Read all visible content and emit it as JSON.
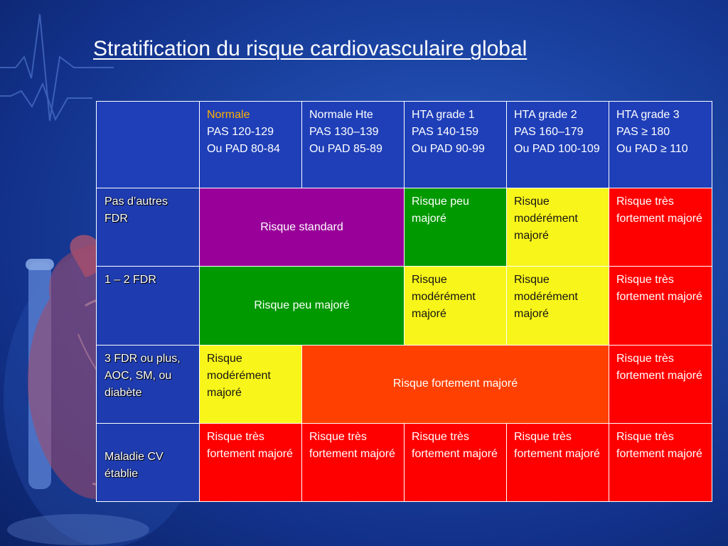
{
  "slide": {
    "title": "Stratification du risque cardiovasculaire global"
  },
  "table": {
    "columns": [
      {
        "line1": "Normale",
        "line2": "PAS 120-129",
        "line3": "Ou PAD 80-84"
      },
      {
        "line1": "Normale Hte",
        "line2": "PAS 130–139",
        "line3": "Ou PAD 85-89"
      },
      {
        "line1": "HTA grade 1",
        "line2": "PAS 140-159",
        "line3": "Ou PAD 90-99"
      },
      {
        "line1": "HTA grade 2",
        "line2": "PAS 160–179",
        "line3": "Ou PAD 100-109"
      },
      {
        "line1": "HTA grade 3",
        "line2": "PAS ≥ 180",
        "line3": "Ou PAD ≥ 110"
      }
    ],
    "rows": [
      {
        "label": "Pas d’autres FDR",
        "cells": [
          "Risque standard",
          "Risque peu majoré",
          "Risque modérément majoré",
          "Risque très fortement majoré"
        ]
      },
      {
        "label": "1 – 2 FDR",
        "cells": [
          "Risque peu majoré",
          "Risque modérément majoré",
          "Risque modérément majoré",
          "Risque très fortement majoré"
        ]
      },
      {
        "label": "3 FDR ou plus, AOC, SM, ou diabète",
        "cells": [
          "Risque modérément majoré",
          "Risque fortement majoré",
          "Risque très fortement majoré"
        ]
      },
      {
        "label": "Maladie CV établie",
        "cells": [
          "Risque très fortement majoré",
          "Risque très fortement majoré",
          "Risque très fortement majoré",
          "Risque très fortement majoré",
          "Risque très fortement majoré"
        ]
      }
    ]
  },
  "colors": {
    "purple": "#990099",
    "green": "#009900",
    "yellow": "#f8f51a",
    "orange": "#ff4000",
    "red": "#ff0000",
    "header_blue": "#1f3fb8",
    "highlight_text": "#ffb000"
  },
  "icons": [
    "heart-illustration",
    "ecg-trace"
  ]
}
